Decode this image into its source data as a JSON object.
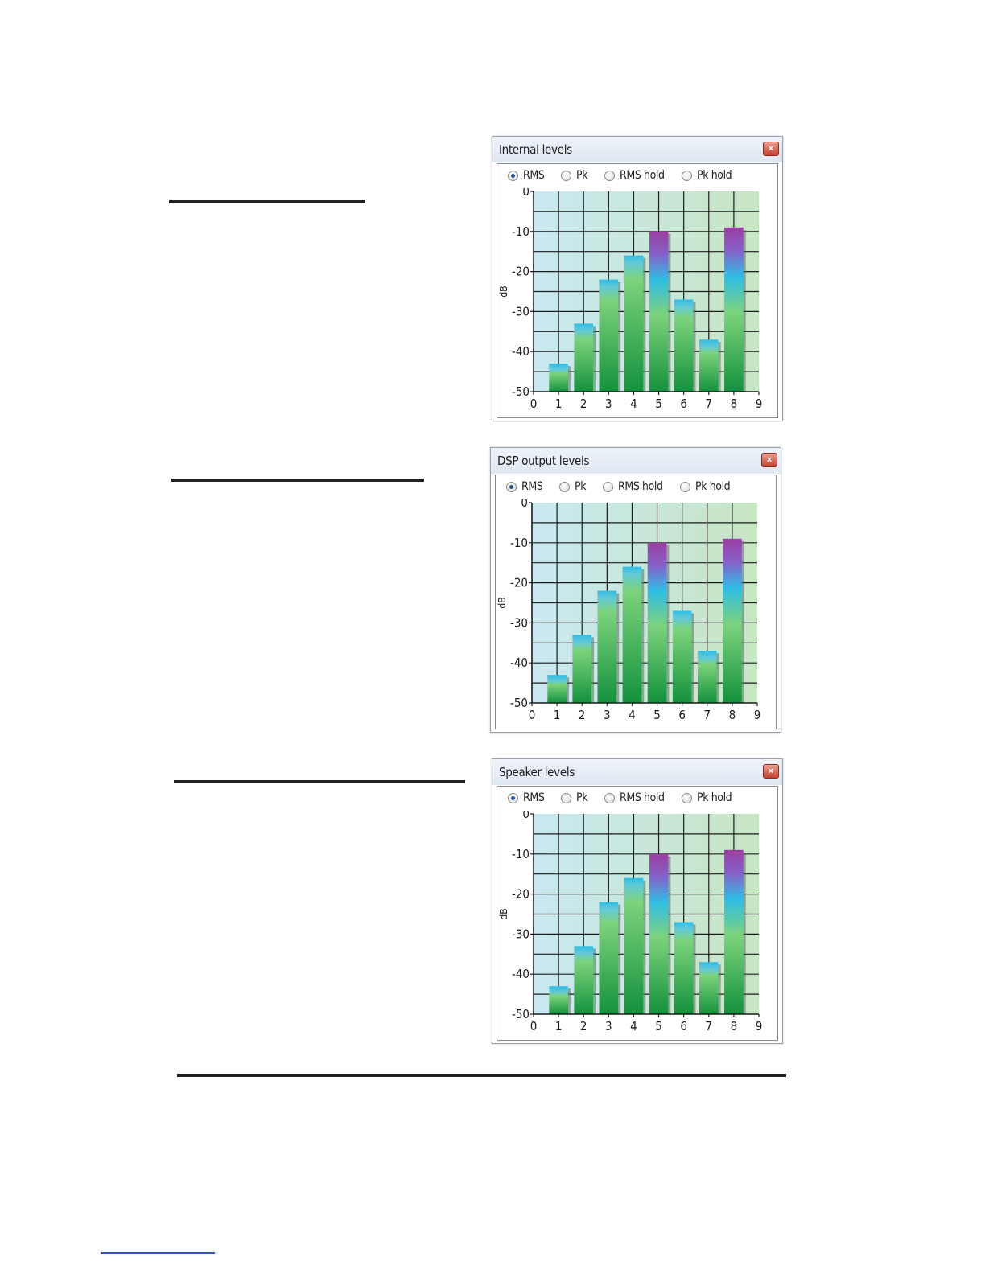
{
  "windows": [
    {
      "title": "Internal levels",
      "close_glyph": "×",
      "modes": [
        {
          "label": "RMS",
          "selected": true
        },
        {
          "label": "Pk",
          "selected": false
        },
        {
          "label": "RMS hold",
          "selected": false
        },
        {
          "label": "Pk hold",
          "selected": false
        }
      ],
      "chart_data": {
        "type": "bar",
        "ylabel": "dB",
        "ylim": [
          -50,
          0
        ],
        "xlim": [
          0,
          9
        ],
        "x_ticks": [
          "0",
          "1",
          "2",
          "3",
          "4",
          "5",
          "6",
          "7",
          "8",
          "9"
        ],
        "y_ticks": [
          "0",
          "-10",
          "-20",
          "-30",
          "-40",
          "-50"
        ],
        "x": [
          1,
          2,
          3,
          4,
          5,
          6,
          7,
          8
        ],
        "values": [
          -43,
          -33,
          -22,
          -16,
          -10,
          -27,
          -37,
          -9
        ],
        "grid": true
      }
    },
    {
      "title": "DSP output levels",
      "close_glyph": "×",
      "modes": [
        {
          "label": "RMS",
          "selected": true
        },
        {
          "label": "Pk",
          "selected": false
        },
        {
          "label": "RMS hold",
          "selected": false
        },
        {
          "label": "Pk hold",
          "selected": false
        }
      ],
      "chart_data": {
        "type": "bar",
        "ylabel": "dB",
        "ylim": [
          -50,
          0
        ],
        "xlim": [
          0,
          9
        ],
        "x_ticks": [
          "0",
          "1",
          "2",
          "3",
          "4",
          "5",
          "6",
          "7",
          "8",
          "9"
        ],
        "y_ticks": [
          "0",
          "-10",
          "-20",
          "-30",
          "-40",
          "-50"
        ],
        "x": [
          1,
          2,
          3,
          4,
          5,
          6,
          7,
          8
        ],
        "values": [
          -43,
          -33,
          -22,
          -16,
          -10,
          -27,
          -37,
          -9
        ],
        "grid": true
      }
    },
    {
      "title": "Speaker levels",
      "close_glyph": "×",
      "modes": [
        {
          "label": "RMS",
          "selected": true
        },
        {
          "label": "Pk",
          "selected": false
        },
        {
          "label": "RMS hold",
          "selected": false
        },
        {
          "label": "Pk hold",
          "selected": false
        }
      ],
      "chart_data": {
        "type": "bar",
        "ylabel": "dB",
        "ylim": [
          -50,
          0
        ],
        "xlim": [
          0,
          9
        ],
        "x_ticks": [
          "0",
          "1",
          "2",
          "3",
          "4",
          "5",
          "6",
          "7",
          "8",
          "9"
        ],
        "y_ticks": [
          "0",
          "-10",
          "-20",
          "-30",
          "-40",
          "-50"
        ],
        "x": [
          1,
          2,
          3,
          4,
          5,
          6,
          7,
          8
        ],
        "values": [
          -43,
          -33,
          -22,
          -16,
          -10,
          -27,
          -37,
          -9
        ],
        "grid": true
      }
    }
  ]
}
